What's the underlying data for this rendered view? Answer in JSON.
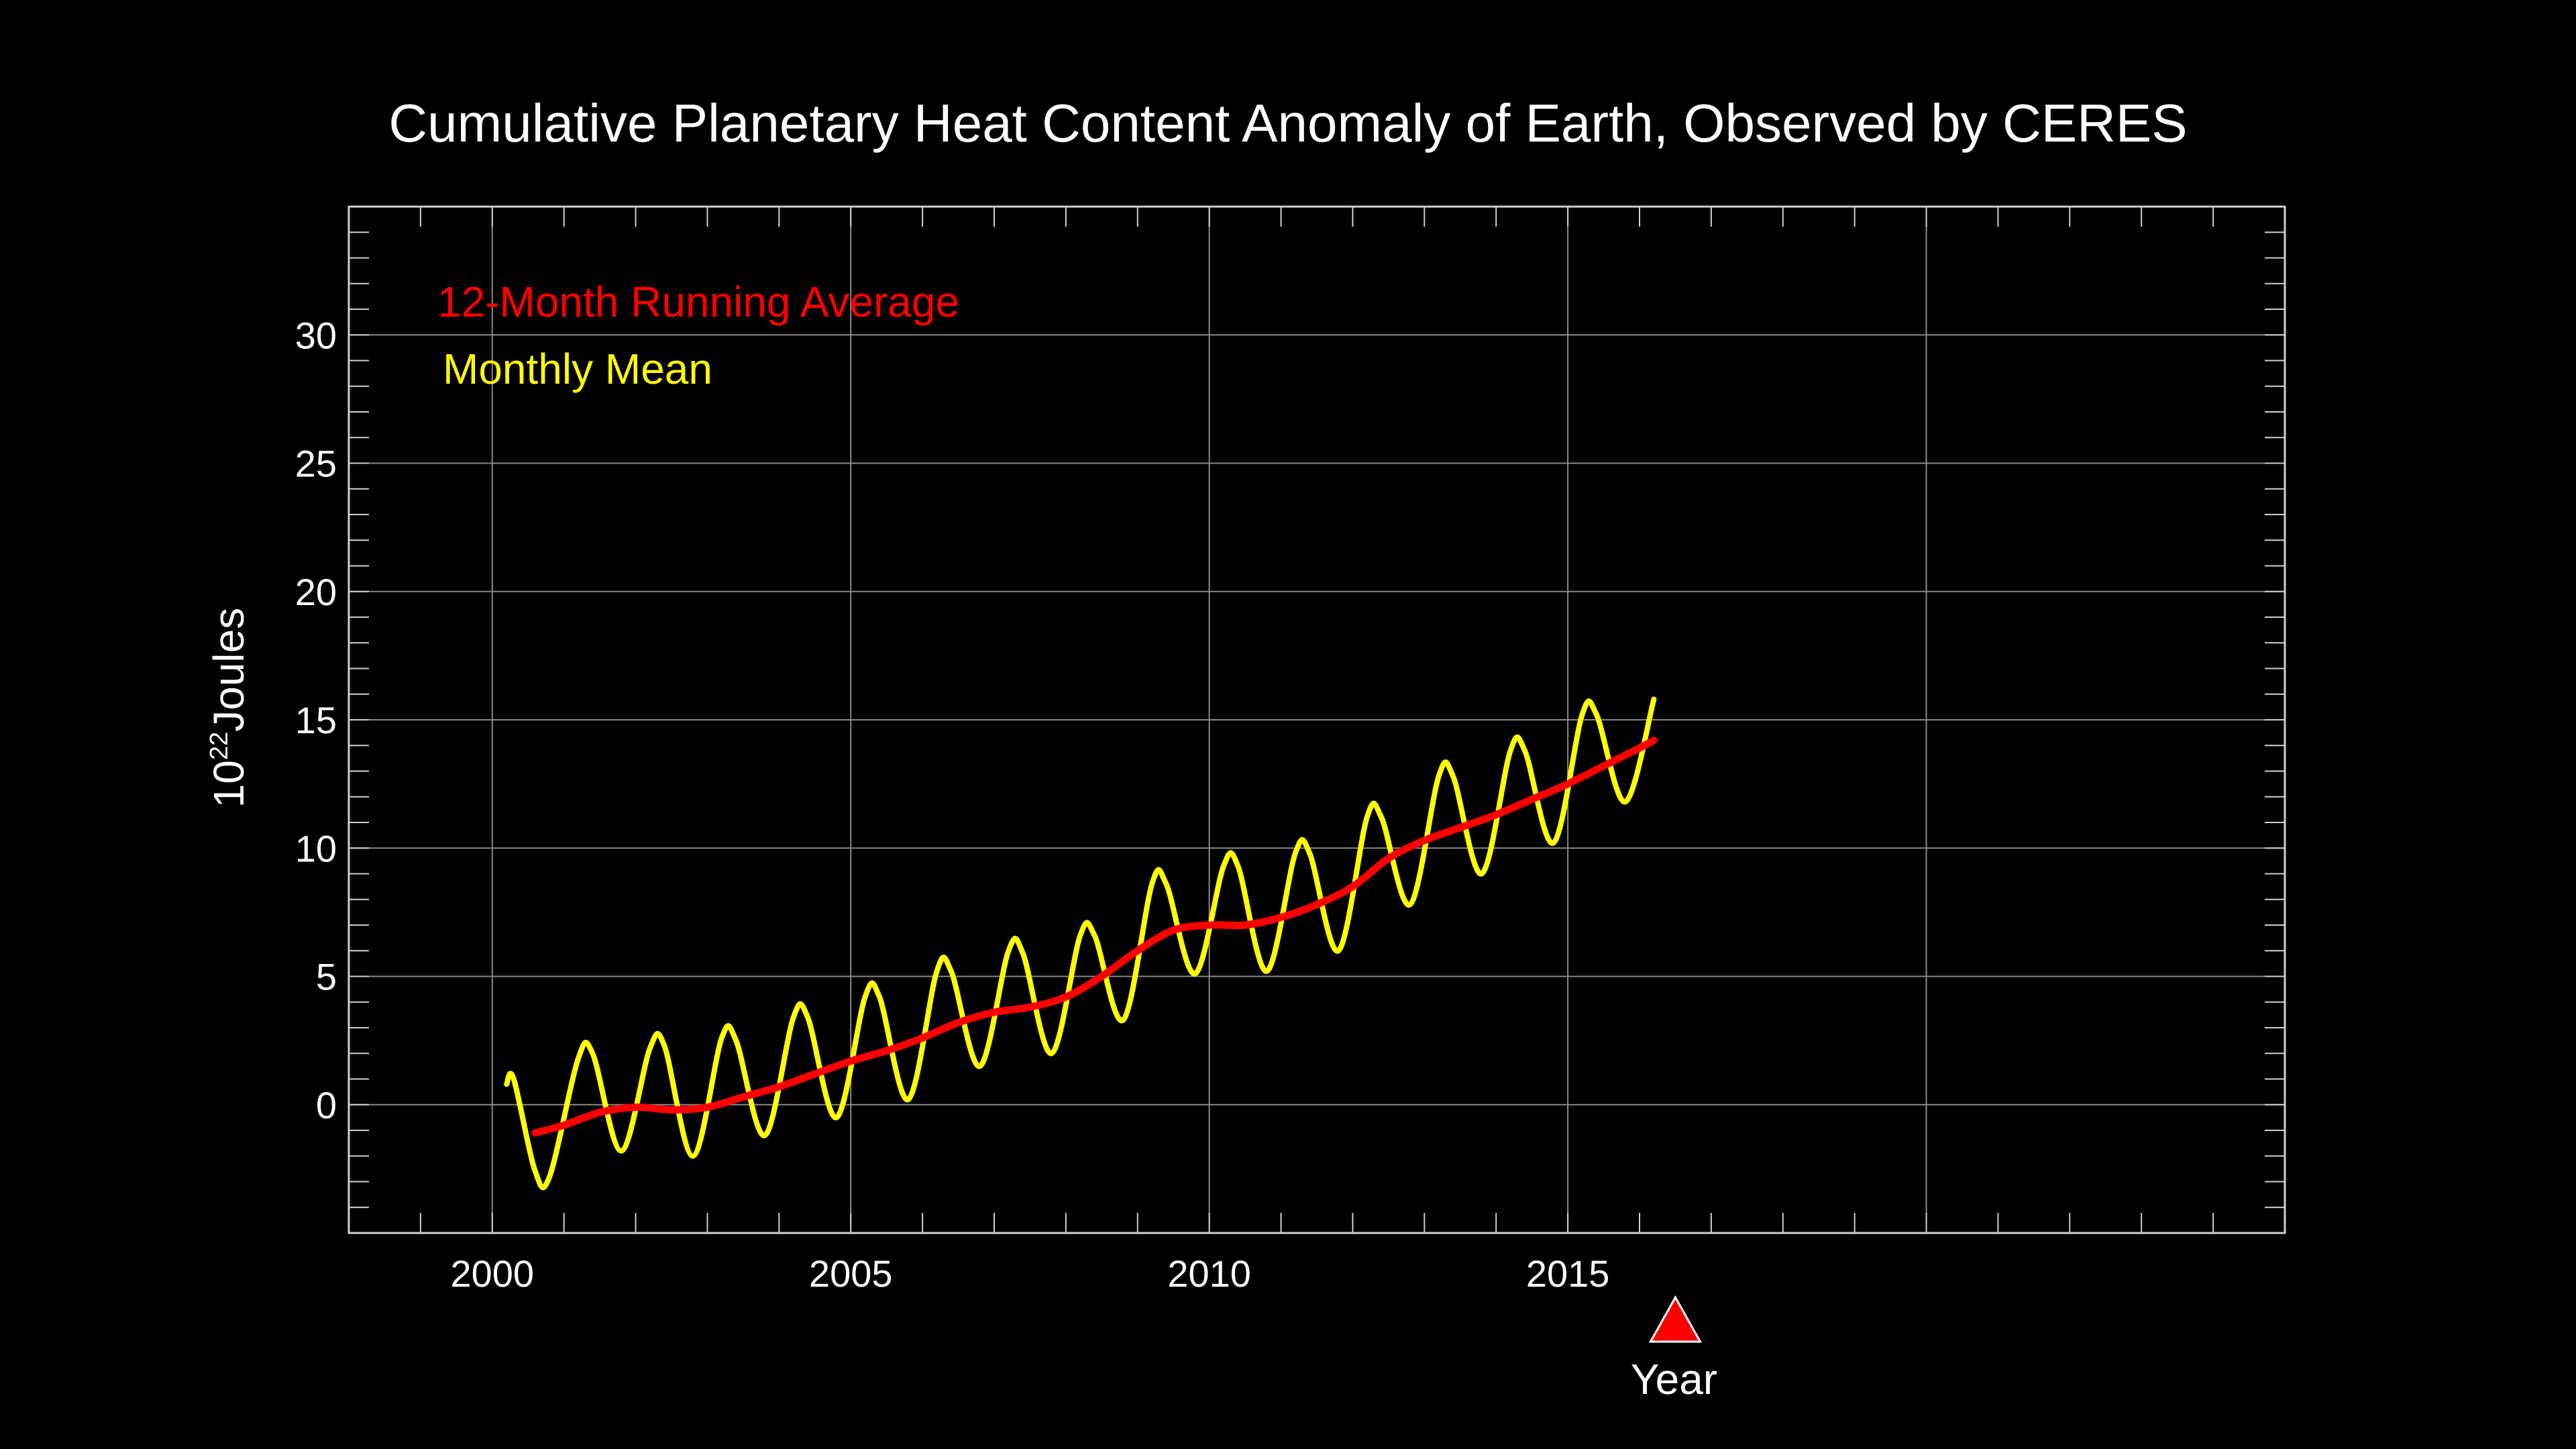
{
  "chart_data": {
    "type": "line",
    "title": "Cumulative Planetary Heat Content Anomaly of Earth, Observed by CERES",
    "xlabel": "Year",
    "ylabel": "Joules",
    "ylabel_prefix": "10",
    "ylabel_exponent": "22",
    "xlim": [
      1998,
      2025
    ],
    "ylim": [
      -5,
      35
    ],
    "xticks": [
      "2000",
      "2005",
      "2010",
      "2015"
    ],
    "yticks": [
      "0",
      "5",
      "10",
      "15",
      "20",
      "25",
      "30"
    ],
    "grid": true,
    "legend_placement": "top-left",
    "current_year_marker": 2016.5,
    "series": [
      {
        "name": "12-Month Running Average",
        "color": "#ff0000",
        "x": [
          2000.6,
          2001.0,
          2001.5,
          2002.0,
          2002.5,
          2003.0,
          2003.5,
          2004.0,
          2004.5,
          2005.0,
          2005.5,
          2006.0,
          2006.5,
          2007.0,
          2007.5,
          2008.0,
          2008.5,
          2009.0,
          2009.5,
          2010.0,
          2010.5,
          2011.0,
          2011.5,
          2012.0,
          2012.5,
          2013.0,
          2013.5,
          2014.0,
          2014.5,
          2015.0,
          2015.5,
          2016.0,
          2016.2
        ],
        "y": [
          -1.1,
          -0.8,
          -0.3,
          -0.1,
          -0.2,
          -0.1,
          0.3,
          0.7,
          1.2,
          1.7,
          2.1,
          2.6,
          3.2,
          3.6,
          3.8,
          4.2,
          5.0,
          6.0,
          6.8,
          7.0,
          7.0,
          7.3,
          7.8,
          8.5,
          9.6,
          10.3,
          10.8,
          11.3,
          11.9,
          12.5,
          13.2,
          13.9,
          14.2
        ]
      },
      {
        "name": "Monthly Mean",
        "color": "#ffff00",
        "x": [
          2000.2,
          2000.3,
          2000.6,
          2000.8,
          2001.2,
          2001.4,
          2001.8,
          2002.2,
          2002.4,
          2002.8,
          2003.2,
          2003.4,
          2003.8,
          2004.2,
          2004.4,
          2004.8,
          2005.2,
          2005.4,
          2005.8,
          2006.2,
          2006.4,
          2006.8,
          2007.2,
          2007.4,
          2007.8,
          2008.2,
          2008.4,
          2008.8,
          2009.2,
          2009.4,
          2009.8,
          2010.2,
          2010.4,
          2010.8,
          2011.2,
          2011.4,
          2011.8,
          2012.2,
          2012.4,
          2012.8,
          2013.2,
          2013.4,
          2013.8,
          2014.2,
          2014.4,
          2014.8,
          2015.2,
          2015.4,
          2015.8,
          2016.2
        ],
        "y": [
          0.8,
          1.0,
          -2.6,
          -2.8,
          1.8,
          2.0,
          -1.8,
          2.2,
          2.3,
          -2.0,
          2.6,
          2.5,
          -1.2,
          3.4,
          3.4,
          -0.5,
          4.2,
          4.2,
          0.2,
          5.2,
          5.2,
          1.5,
          6.0,
          5.9,
          2.0,
          6.6,
          6.6,
          3.3,
          8.6,
          8.6,
          5.1,
          9.3,
          9.3,
          5.2,
          9.8,
          9.8,
          6.0,
          11.2,
          11.2,
          7.8,
          12.8,
          12.8,
          9.0,
          13.8,
          13.8,
          10.2,
          15.2,
          15.2,
          11.8,
          15.8
        ]
      }
    ]
  }
}
